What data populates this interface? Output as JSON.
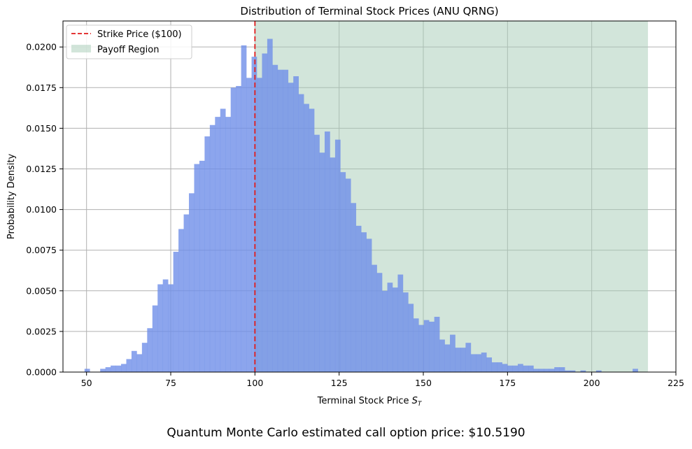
{
  "figure": {
    "caption": "Quantum Monte Carlo estimated call option price: $10.5190"
  },
  "chart_data": {
    "type": "bar",
    "title": "Distribution of Terminal Stock Prices (ANU QRNG)",
    "xlabel_main": "Terminal Stock Price ",
    "xlabel_sym": "S",
    "xlabel_sub": "T",
    "ylabel": "Probability Density",
    "xlim": [
      43,
      225
    ],
    "ylim": [
      0,
      0.0216
    ],
    "xticks": [
      50,
      75,
      100,
      125,
      150,
      175,
      200,
      225
    ],
    "yticks": [
      0.0,
      0.0025,
      0.005,
      0.0075,
      0.01,
      0.0125,
      0.015,
      0.0175,
      0.02
    ],
    "ytick_labels": [
      "0.0000",
      "0.0025",
      "0.0050",
      "0.0075",
      "0.0100",
      "0.0125",
      "0.0150",
      "0.0175",
      "0.0200"
    ],
    "grid": true,
    "legend_position": "top-left",
    "strike": 100,
    "strike_label": "Strike Price ($100)",
    "payoff_region": [
      100,
      216.7
    ],
    "payoff_label": "Payoff Region",
    "bin_start": 49.4,
    "bin_width": 1.55,
    "values": [
      0.0002,
      0.0,
      0.0,
      0.0002,
      0.0003,
      0.0004,
      0.0004,
      0.0005,
      0.0008,
      0.0013,
      0.0011,
      0.0018,
      0.0027,
      0.0041,
      0.0054,
      0.0057,
      0.0054,
      0.0074,
      0.0088,
      0.0097,
      0.011,
      0.0128,
      0.013,
      0.0145,
      0.0152,
      0.0157,
      0.0162,
      0.0157,
      0.0175,
      0.0176,
      0.0201,
      0.0181,
      0.0194,
      0.0181,
      0.0196,
      0.0205,
      0.0189,
      0.0186,
      0.0186,
      0.0178,
      0.0182,
      0.0171,
      0.0165,
      0.0162,
      0.0146,
      0.0135,
      0.0148,
      0.0132,
      0.0143,
      0.0123,
      0.0119,
      0.0104,
      0.009,
      0.0086,
      0.0082,
      0.0066,
      0.0061,
      0.005,
      0.0055,
      0.0052,
      0.006,
      0.0049,
      0.0042,
      0.0033,
      0.0029,
      0.0032,
      0.0031,
      0.0034,
      0.002,
      0.0017,
      0.0023,
      0.0015,
      0.0015,
      0.0018,
      0.0011,
      0.0011,
      0.0012,
      0.0009,
      0.0006,
      0.0006,
      0.0005,
      0.0004,
      0.0004,
      0.0005,
      0.0004,
      0.0004,
      0.0002,
      0.0002,
      0.0002,
      0.0002,
      0.0003,
      0.0003,
      0.0001,
      0.0001,
      0.0,
      0.0001,
      0.0,
      0.0,
      0.0001,
      0.0,
      0.0,
      0.0,
      0.0,
      0.0,
      0.0,
      0.0002
    ],
    "colors": {
      "bars": "#6f8ee8",
      "payoff": "#a6cbb5",
      "strike": "#e01b1b",
      "grid": "#b0b0b0"
    }
  }
}
